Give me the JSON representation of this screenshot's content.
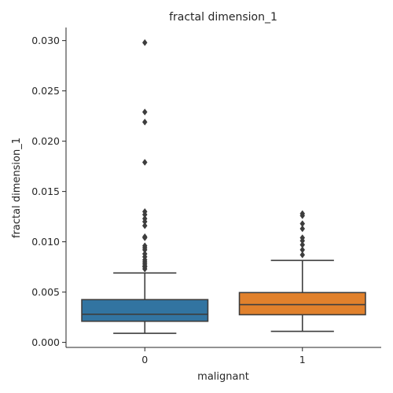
{
  "chart_data": {
    "type": "box",
    "title": "fractal dimension_1",
    "xlabel": "malignant",
    "ylabel": "fractal dimension_1",
    "ylim": [
      -0.0005,
      0.0313
    ],
    "yticks": [
      "0.000",
      "0.005",
      "0.010",
      "0.015",
      "0.020",
      "0.025",
      "0.030"
    ],
    "grid": false,
    "boxes": [
      {
        "category": "0",
        "color": "#3274a1",
        "whisker_low": 0.0009,
        "q1": 0.0021,
        "median": 0.0028,
        "q3": 0.00425,
        "whisker_high": 0.0069,
        "outliers": [
          0.0298,
          0.0229,
          0.0219,
          0.0179,
          0.013,
          0.0127,
          0.0123,
          0.012,
          0.0116,
          0.0105,
          0.0104,
          0.0096,
          0.0094,
          0.0092,
          0.0088,
          0.0085,
          0.0082,
          0.008,
          0.0078,
          0.0076,
          0.0075,
          0.0073
        ]
      },
      {
        "category": "1",
        "color": "#e1812c",
        "whisker_low": 0.0011,
        "q1": 0.00275,
        "median": 0.00375,
        "q3": 0.00495,
        "whisker_high": 0.00815,
        "outliers": [
          0.0128,
          0.0126,
          0.0118,
          0.0113,
          0.0104,
          0.0101,
          0.0097,
          0.0092,
          0.0087
        ]
      }
    ]
  }
}
